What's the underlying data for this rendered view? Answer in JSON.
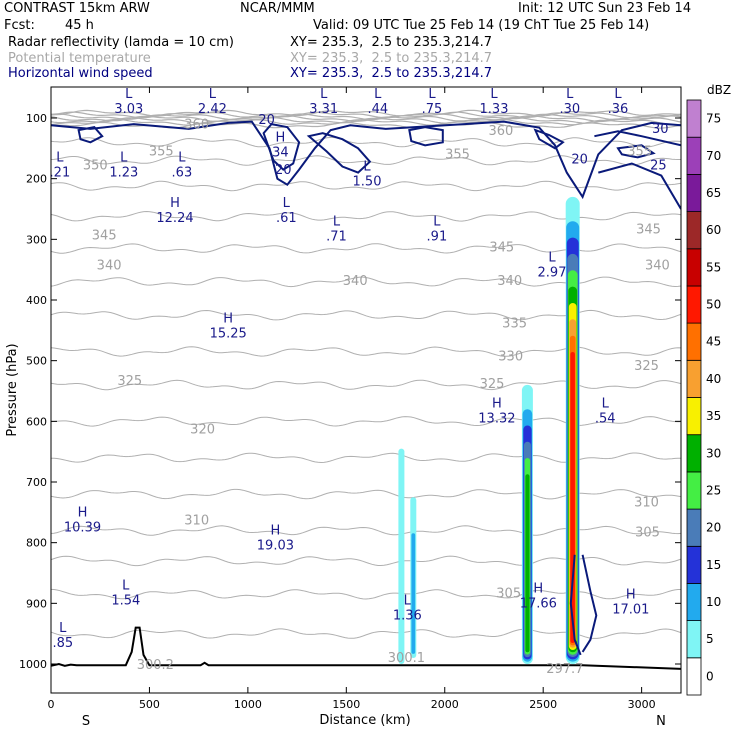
{
  "header": {
    "model": "CONTRAST 15km ARW",
    "center": "NCAR/MMM",
    "init": "Init: 12 UTC Sun 23 Feb 14",
    "fcst_label": "Fcst:",
    "fcst_value": "45 h",
    "valid": "Valid: 09 UTC Tue 25 Feb 14 (19 ChT Tue 25 Feb 14)",
    "fields": [
      {
        "name": "Radar reflectivity (lamda = 10 cm)",
        "xy": "XY= 235.3,  2.5 to 235.3,214.7",
        "color": "#000000"
      },
      {
        "name": "Potential temperature",
        "xy": "XY= 235.3,  2.5 to 235.3,214.7",
        "color": "#a8a8a8"
      },
      {
        "name": "Horizontal wind speed",
        "xy": "XY= 235.3,  2.5 to 235.3,214.7",
        "color": "#000080"
      }
    ]
  },
  "chart_data": {
    "type": "cross-section",
    "xlabel": "Distance (km)",
    "ylabel": "Pressure (hPa)",
    "xlim": [
      0,
      3200
    ],
    "ylim_hpa": [
      1050,
      60
    ],
    "x_ticks": [
      0,
      500,
      1000,
      1500,
      2000,
      2500,
      3000
    ],
    "y_ticks": [
      100,
      200,
      300,
      400,
      500,
      600,
      700,
      800,
      900,
      1000
    ],
    "x_endpoints": {
      "left": "S",
      "right": "N"
    },
    "colorbar": {
      "title": "dBZ",
      "levels": [
        0,
        5,
        10,
        15,
        20,
        25,
        30,
        35,
        40,
        45,
        50,
        55,
        60,
        65,
        70,
        75
      ],
      "colors": [
        "#ffffff",
        "#7ff5f5",
        "#22aaee",
        "#2432d8",
        "#4a7cb8",
        "#44ee44",
        "#00b000",
        "#f8f000",
        "#f8a030",
        "#ff7000",
        "#ff1800",
        "#c80000",
        "#9c2828",
        "#7a1a9a",
        "#9c40b8",
        "#c080d0"
      ]
    },
    "reflectivity_columns": [
      {
        "x_km": 1780,
        "p_top": 645,
        "p_bottom": 1000,
        "max_dbz": 5
      },
      {
        "x_km": 1840,
        "p_top": 725,
        "p_bottom": 990,
        "max_dbz": 10
      },
      {
        "x_km": 2420,
        "p_top": 540,
        "p_bottom": 1000,
        "max_dbz": 30
      },
      {
        "x_km": 2650,
        "p_top": 230,
        "p_bottom": 1000,
        "max_dbz": 50
      }
    ],
    "theta_contours": [
      {
        "value": "360",
        "x_km": 740,
        "p": 117
      },
      {
        "value": "360",
        "x_km": 2285,
        "p": 128
      },
      {
        "value": "355",
        "x_km": 560,
        "p": 162
      },
      {
        "value": "355",
        "x_km": 2065,
        "p": 167
      },
      {
        "value": "355",
        "x_km": 2990,
        "p": 162
      },
      {
        "value": "350",
        "x_km": 225,
        "p": 185
      },
      {
        "value": "345",
        "x_km": 270,
        "p": 300
      },
      {
        "value": "345",
        "x_km": 2290,
        "p": 320
      },
      {
        "value": "345",
        "x_km": 3035,
        "p": 290
      },
      {
        "value": "340",
        "x_km": 295,
        "p": 350
      },
      {
        "value": "340",
        "x_km": 1545,
        "p": 375
      },
      {
        "value": "340",
        "x_km": 2330,
        "p": 375
      },
      {
        "value": "340",
        "x_km": 3080,
        "p": 350
      },
      {
        "value": "335",
        "x_km": 2355,
        "p": 445
      },
      {
        "value": "330",
        "x_km": 2335,
        "p": 500
      },
      {
        "value": "325",
        "x_km": 400,
        "p": 540
      },
      {
        "value": "325",
        "x_km": 2240,
        "p": 545
      },
      {
        "value": "325",
        "x_km": 3025,
        "p": 515
      },
      {
        "value": "320",
        "x_km": 770,
        "p": 620
      },
      {
        "value": "310",
        "x_km": 740,
        "p": 770
      },
      {
        "value": "310",
        "x_km": 3025,
        "p": 740
      },
      {
        "value": "305",
        "x_km": 3030,
        "p": 790
      },
      {
        "value": "305",
        "x_km": 2325,
        "p": 890
      },
      {
        "value": "300.2",
        "x_km": 530,
        "p": 1008
      },
      {
        "value": "300.1",
        "x_km": 1805,
        "p": 997
      },
      {
        "value": "297.7",
        "x_km": 2610,
        "p": 1015
      }
    ],
    "wind_contours": [
      {
        "value": "20",
        "x_km": 1095,
        "p": 110
      },
      {
        "value": "20",
        "x_km": 1180,
        "p": 192
      },
      {
        "value": "20",
        "x_km": 2685,
        "p": 175
      },
      {
        "value": "25",
        "x_km": 3085,
        "p": 185
      },
      {
        "value": "30",
        "x_km": 3095,
        "p": 125
      }
    ],
    "extrema": [
      {
        "kind": "L",
        "value": "3.03",
        "x_km": 395,
        "p": 90
      },
      {
        "kind": "L",
        "value": "2.42",
        "x_km": 820,
        "p": 90
      },
      {
        "kind": "L",
        "value": "3.31",
        "x_km": 1385,
        "p": 90
      },
      {
        "kind": "L",
        "value": ".44",
        "x_km": 1660,
        "p": 90
      },
      {
        "kind": "L",
        "value": ".75",
        "x_km": 1935,
        "p": 90
      },
      {
        "kind": "L",
        "value": "1.33",
        "x_km": 2250,
        "p": 90
      },
      {
        "kind": "L",
        "value": ".30",
        "x_km": 2635,
        "p": 90
      },
      {
        "kind": "L",
        "value": ".36",
        "x_km": 2880,
        "p": 90
      },
      {
        "kind": "H",
        "value": "34",
        "x_km": 1165,
        "p": 162
      },
      {
        "kind": "L",
        "value": ".21",
        "x_km": 45,
        "p": 195
      },
      {
        "kind": "L",
        "value": "1.23",
        "x_km": 370,
        "p": 195
      },
      {
        "kind": "L",
        "value": ".63",
        "x_km": 665,
        "p": 195
      },
      {
        "kind": "L",
        "value": "1.50",
        "x_km": 1605,
        "p": 210
      },
      {
        "kind": "H",
        "value": "12.24",
        "x_km": 630,
        "p": 270
      },
      {
        "kind": "L",
        "value": ".61",
        "x_km": 1195,
        "p": 270
      },
      {
        "kind": "L",
        "value": ".71",
        "x_km": 1450,
        "p": 300
      },
      {
        "kind": "L",
        "value": ".91",
        "x_km": 1960,
        "p": 300
      },
      {
        "kind": "L",
        "value": "2.97",
        "x_km": 2545,
        "p": 360
      },
      {
        "kind": "H",
        "value": "15.25",
        "x_km": 900,
        "p": 460
      },
      {
        "kind": "H",
        "value": "13.32",
        "x_km": 2265,
        "p": 600
      },
      {
        "kind": "L",
        "value": ".54",
        "x_km": 2815,
        "p": 600
      },
      {
        "kind": "H",
        "value": "10.39",
        "x_km": 160,
        "p": 780
      },
      {
        "kind": "H",
        "value": "19.03",
        "x_km": 1140,
        "p": 810
      },
      {
        "kind": "H",
        "value": "17.66",
        "x_km": 2475,
        "p": 905
      },
      {
        "kind": "H",
        "value": "17.01",
        "x_km": 2945,
        "p": 915
      },
      {
        "kind": "L",
        "value": "1.54",
        "x_km": 380,
        "p": 900
      },
      {
        "kind": "L",
        "value": "1.36",
        "x_km": 1810,
        "p": 925
      },
      {
        "kind": "L",
        "value": ".85",
        "x_km": 60,
        "p": 970
      }
    ]
  },
  "colors": {
    "theta": "#b0b0b0",
    "wind": "#0a1a7a",
    "label_navy": "#1a1a8a",
    "terrain": "#000000"
  }
}
